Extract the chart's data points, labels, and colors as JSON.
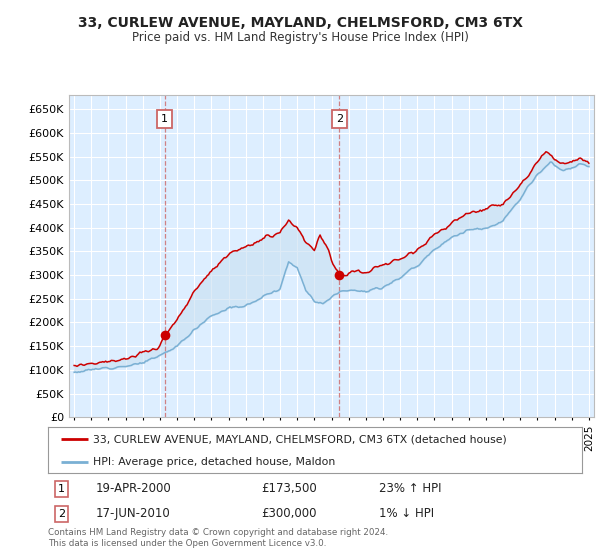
{
  "title": "33, CURLEW AVENUE, MAYLAND, CHELMSFORD, CM3 6TX",
  "subtitle": "Price paid vs. HM Land Registry's House Price Index (HPI)",
  "property_label": "33, CURLEW AVENUE, MAYLAND, CHELMSFORD, CM3 6TX (detached house)",
  "hpi_label": "HPI: Average price, detached house, Maldon",
  "sale1_date": "19-APR-2000",
  "sale1_price": 173500,
  "sale1_hpi_pct": "23% ↑ HPI",
  "sale2_date": "17-JUN-2010",
  "sale2_price": 300000,
  "sale2_hpi_pct": "1% ↓ HPI",
  "footer": "Contains HM Land Registry data © Crown copyright and database right 2024.\nThis data is licensed under the Open Government Licence v3.0.",
  "property_color": "#cc0000",
  "hpi_color": "#7ab0d4",
  "fill_color": "#c8dff0",
  "vline_color": "#cc6666",
  "background_color": "#ddeeff",
  "grid_color": "#ffffff",
  "ylim": [
    0,
    680000
  ],
  "yticks": [
    0,
    50000,
    100000,
    150000,
    200000,
    250000,
    300000,
    350000,
    400000,
    450000,
    500000,
    550000,
    600000,
    650000
  ],
  "xlim_start": 1994.7,
  "xlim_end": 2025.3,
  "sale1_year": 2000.28,
  "sale2_year": 2010.45,
  "sale1_price_val": 173500,
  "sale2_price_val": 300000
}
